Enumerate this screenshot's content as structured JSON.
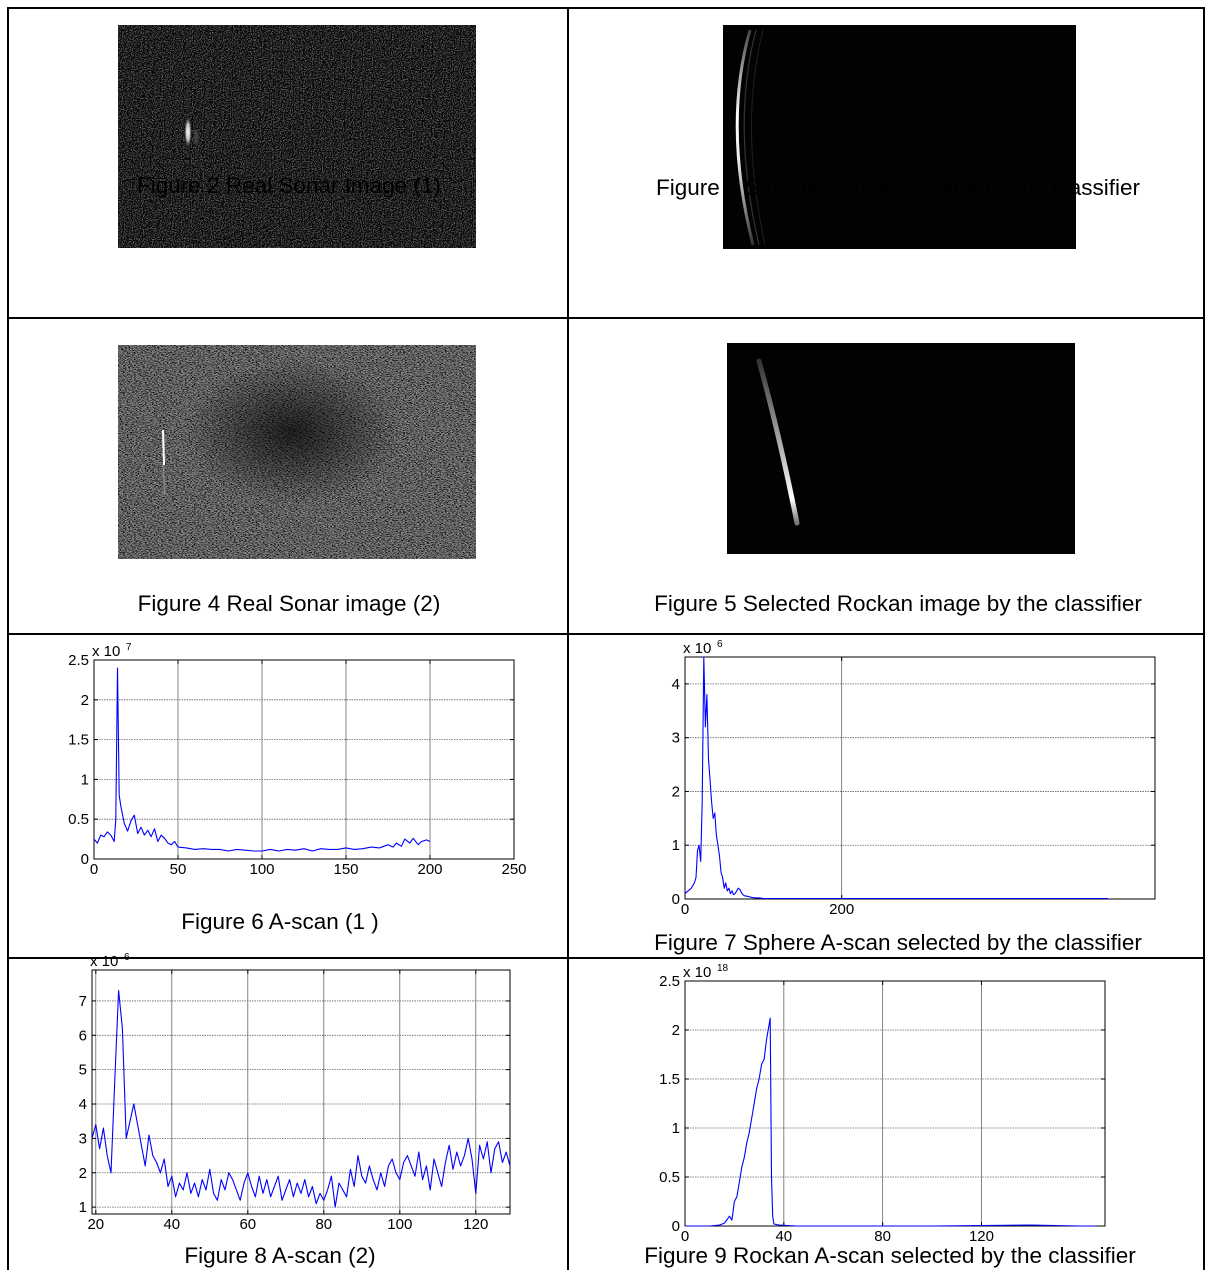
{
  "captions": {
    "fig2": "Figure 2 Real Sonar Image (1)",
    "fig3": "Figure 3 Selected Sphere image by the classifier",
    "fig4": "Figure 4 Real Sonar image (2)",
    "fig5": "Figure 5 Selected Rockan image by the classifier",
    "fig6": "Figure 6 A-scan (1 )",
    "fig7": "Figure 7 Sphere A-scan selected by the classifier",
    "fig8": "Figure 8 A-scan (2)",
    "fig9": "Figure 9 Rockan A-scan selected by the classifier"
  },
  "colors": {
    "line": "#0000ff",
    "grid": "#666666",
    "image_bg": "#050505"
  },
  "chart_data": [
    {
      "id": "fig6",
      "type": "line",
      "multiplier": "x 10",
      "exponent": "7",
      "xlim": [
        0,
        250
      ],
      "ylim": [
        0,
        2.5
      ],
      "xticks": [
        0,
        50,
        100,
        150,
        200,
        250
      ],
      "yticks": [
        0,
        0.5,
        1,
        1.5,
        2,
        2.5
      ],
      "xtick_labels": [
        "0",
        "50",
        "100",
        "150",
        "200",
        "250"
      ],
      "ytick_labels": [
        "0",
        "0.5",
        "1",
        "1.5",
        "2",
        "2.5"
      ],
      "grid": true,
      "x": [
        0,
        2,
        4,
        6,
        8,
        10,
        12,
        13,
        14,
        15,
        16,
        18,
        20,
        22,
        24,
        26,
        28,
        30,
        32,
        34,
        36,
        38,
        40,
        42,
        44,
        46,
        48,
        50,
        55,
        60,
        65,
        70,
        75,
        80,
        85,
        90,
        95,
        100,
        105,
        110,
        115,
        120,
        125,
        130,
        135,
        140,
        145,
        150,
        155,
        160,
        165,
        170,
        175,
        178,
        180,
        183,
        185,
        188,
        190,
        193,
        195,
        198,
        200
      ],
      "y": [
        0.25,
        0.2,
        0.3,
        0.28,
        0.34,
        0.3,
        0.22,
        0.5,
        2.4,
        0.8,
        0.66,
        0.45,
        0.35,
        0.48,
        0.55,
        0.32,
        0.4,
        0.3,
        0.36,
        0.28,
        0.38,
        0.22,
        0.3,
        0.26,
        0.2,
        0.18,
        0.22,
        0.15,
        0.14,
        0.12,
        0.13,
        0.12,
        0.12,
        0.1,
        0.12,
        0.11,
        0.1,
        0.1,
        0.12,
        0.1,
        0.12,
        0.11,
        0.13,
        0.1,
        0.13,
        0.12,
        0.12,
        0.14,
        0.12,
        0.13,
        0.15,
        0.14,
        0.18,
        0.15,
        0.2,
        0.16,
        0.25,
        0.2,
        0.26,
        0.18,
        0.22,
        0.24,
        0.22
      ],
      "series": [
        {
          "name": "",
          "color": "#0000ff"
        }
      ]
    },
    {
      "id": "fig7",
      "type": "line",
      "multiplier": "x 10",
      "exponent": "6",
      "xlim": [
        0,
        600
      ],
      "ylim": [
        0,
        4.5
      ],
      "xticks": [
        0,
        200
      ],
      "yticks": [
        0,
        1,
        2,
        3,
        4
      ],
      "xtick_labels": [
        "0",
        "200"
      ],
      "ytick_labels": [
        "0",
        "1",
        "2",
        "3",
        "4"
      ],
      "grid": true,
      "x": [
        0,
        4,
        8,
        12,
        14,
        16,
        18,
        20,
        22,
        24,
        26,
        28,
        30,
        32,
        34,
        36,
        38,
        40,
        42,
        44,
        46,
        48,
        50,
        52,
        54,
        56,
        58,
        60,
        62,
        64,
        66,
        68,
        70,
        72,
        74,
        76,
        80,
        85,
        90,
        95,
        100,
        120,
        160,
        200,
        260,
        320,
        400,
        480,
        540
      ],
      "y": [
        0.1,
        0.15,
        0.2,
        0.3,
        0.4,
        0.9,
        1.0,
        0.7,
        1.8,
        4.5,
        3.2,
        3.8,
        2.6,
        2.2,
        1.8,
        1.5,
        1.6,
        1.2,
        1.0,
        0.8,
        0.5,
        0.4,
        0.2,
        0.3,
        0.15,
        0.2,
        0.1,
        0.15,
        0.08,
        0.1,
        0.15,
        0.2,
        0.18,
        0.12,
        0.08,
        0.06,
        0.05,
        0.03,
        0.02,
        0.02,
        0.01,
        0.01,
        0.01,
        0.01,
        0.01,
        0.01,
        0.01,
        0.01,
        0.01
      ],
      "series": [
        {
          "name": "",
          "color": "#0000ff"
        }
      ]
    },
    {
      "id": "fig8",
      "type": "line",
      "multiplier": "x 10",
      "exponent": "6",
      "xlim": [
        19,
        129
      ],
      "ylim": [
        0.8,
        7.9
      ],
      "xticks": [
        20,
        40,
        60,
        80,
        100,
        120
      ],
      "yticks": [
        1,
        2,
        3,
        4,
        5,
        6,
        7
      ],
      "xtick_labels": [
        "20",
        "40",
        "60",
        "80",
        "100",
        "120"
      ],
      "ytick_labels": [
        "1",
        "2",
        "3",
        "4",
        "5",
        "6",
        "7"
      ],
      "grid": true,
      "x": [
        19,
        20,
        21,
        22,
        23,
        24,
        25,
        26,
        27,
        28,
        29,
        30,
        31,
        32,
        33,
        34,
        35,
        36,
        37,
        38,
        39,
        40,
        41,
        42,
        43,
        44,
        45,
        46,
        47,
        48,
        49,
        50,
        51,
        52,
        53,
        54,
        55,
        56,
        57,
        58,
        59,
        60,
        61,
        62,
        63,
        64,
        65,
        66,
        67,
        68,
        69,
        70,
        71,
        72,
        73,
        74,
        75,
        76,
        77,
        78,
        79,
        80,
        81,
        82,
        83,
        84,
        85,
        86,
        87,
        88,
        89,
        90,
        91,
        92,
        93,
        94,
        95,
        96,
        97,
        98,
        99,
        100,
        101,
        102,
        103,
        104,
        105,
        106,
        107,
        108,
        109,
        110,
        111,
        112,
        113,
        114,
        115,
        116,
        117,
        118,
        119,
        120,
        121,
        122,
        123,
        124,
        125,
        126,
        127,
        128,
        129
      ],
      "y": [
        3.0,
        3.4,
        2.7,
        3.3,
        2.5,
        2.0,
        4.7,
        7.3,
        6.2,
        3.0,
        3.5,
        4.0,
        3.4,
        2.8,
        2.2,
        3.1,
        2.5,
        2.3,
        2.0,
        2.4,
        1.6,
        1.9,
        1.3,
        1.7,
        1.5,
        2.0,
        1.4,
        1.7,
        1.3,
        1.8,
        1.5,
        2.1,
        1.4,
        1.2,
        1.8,
        1.5,
        2.0,
        1.8,
        1.5,
        1.2,
        1.7,
        2.0,
        1.6,
        1.3,
        1.9,
        1.4,
        1.8,
        1.3,
        1.6,
        1.9,
        1.2,
        1.5,
        1.8,
        1.3,
        1.7,
        1.4,
        1.8,
        1.3,
        1.6,
        1.1,
        1.4,
        1.2,
        1.5,
        1.9,
        1.0,
        1.7,
        1.5,
        1.3,
        2.1,
        1.6,
        2.5,
        1.9,
        1.7,
        2.2,
        1.8,
        1.5,
        2.0,
        1.6,
        2.2,
        2.4,
        2.0,
        1.8,
        2.3,
        2.5,
        2.2,
        1.9,
        2.6,
        1.8,
        2.2,
        1.5,
        2.4,
        2.0,
        1.6,
        2.3,
        2.8,
        2.1,
        2.6,
        2.2,
        2.5,
        3.0,
        2.4,
        1.4,
        2.8,
        2.4,
        2.9,
        2.0,
        2.7,
        2.9,
        2.3,
        2.6,
        2.2
      ],
      "series": [
        {
          "name": "",
          "color": "#0000ff"
        }
      ]
    },
    {
      "id": "fig9",
      "type": "line",
      "multiplier": "x 10",
      "exponent": "18",
      "xlim": [
        0,
        170
      ],
      "ylim": [
        0,
        2.5
      ],
      "xticks": [
        0,
        40,
        80,
        120
      ],
      "yticks": [
        0,
        0.5,
        1,
        1.5,
        2,
        2.5
      ],
      "xtick_labels": [
        "0",
        "40",
        "80",
        "120"
      ],
      "ytick_labels": [
        "0",
        "0.5",
        "1",
        "1.5",
        "2",
        "2.5"
      ],
      "grid": true,
      "x": [
        0,
        5,
        10,
        14,
        16,
        18,
        19,
        20,
        21,
        22,
        23,
        24,
        25,
        26,
        27,
        28,
        29,
        30,
        31,
        32,
        33,
        34,
        34.5,
        35,
        35.5,
        36,
        38,
        45,
        60,
        100,
        140,
        160,
        166
      ],
      "y": [
        0,
        0,
        0,
        0.01,
        0.03,
        0.1,
        0.06,
        0.25,
        0.3,
        0.45,
        0.6,
        0.7,
        0.85,
        0.95,
        1.1,
        1.25,
        1.4,
        1.5,
        1.65,
        1.7,
        1.9,
        2.05,
        2.12,
        0.5,
        0.1,
        0.02,
        0.01,
        0.0,
        0.0,
        0.0,
        0.01,
        0.0,
        0.0
      ],
      "series": [
        {
          "name": "",
          "color": "#0000ff"
        }
      ]
    }
  ]
}
